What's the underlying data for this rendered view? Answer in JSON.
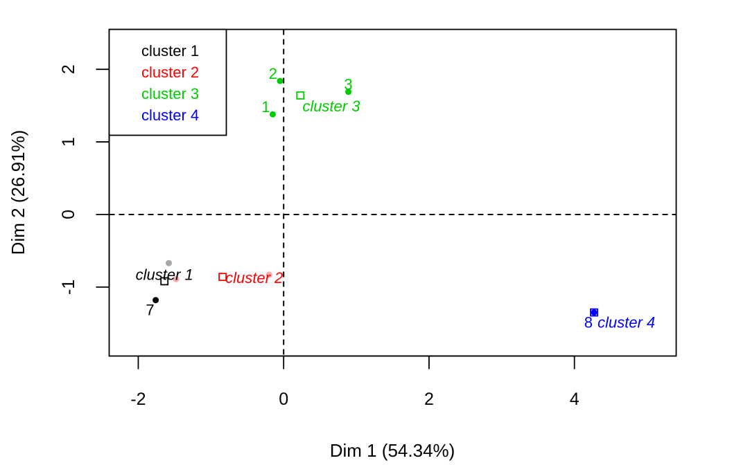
{
  "chart_data": {
    "type": "scatter",
    "title": "",
    "xlabel": "Dim 1 (54.34%)",
    "ylabel": "Dim 2 (26.91%)",
    "xlim": [
      -2.4,
      5.4
    ],
    "ylim": [
      -1.95,
      2.55
    ],
    "x_ticks": [
      -2,
      0,
      2,
      4
    ],
    "x_tick_labels": [
      "-2",
      "0",
      "2",
      "4"
    ],
    "y_ticks": [
      -1,
      0,
      1,
      2
    ],
    "y_tick_labels": [
      "-1",
      "0",
      "1",
      "2"
    ],
    "grid": false,
    "reference_lines": {
      "x": 0,
      "y": 0,
      "style": "dashed"
    },
    "legend": {
      "placement": "top-left",
      "entries": [
        {
          "label": "cluster 1",
          "color": "#000000"
        },
        {
          "label": "cluster 2",
          "color": "#FF0000"
        },
        {
          "label": "cluster 3",
          "color": "#00CD00"
        },
        {
          "label": "cluster 4",
          "color": "#0000FF"
        }
      ]
    },
    "series": [
      {
        "color": "#000000",
        "points": [
          {
            "x": -1.58,
            "y": -0.67,
            "label": "",
            "faded": true
          },
          {
            "x": -1.76,
            "y": -1.18,
            "label": "7",
            "faded": false
          }
        ],
        "center": {
          "x": -1.64,
          "y": -0.92,
          "label": "cluster 1"
        }
      },
      {
        "color": "#FF0000",
        "points": [
          {
            "x": -1.48,
            "y": -0.89,
            "label": "",
            "faded": true
          },
          {
            "x": -0.2,
            "y": -0.83,
            "label": "",
            "faded": true
          }
        ],
        "center": {
          "x": -0.84,
          "y": -0.86,
          "label": "cluster 2"
        }
      },
      {
        "color": "#00CD00",
        "points": [
          {
            "x": -0.15,
            "y": 1.38,
            "label": "1",
            "faded": false
          },
          {
            "x": -0.05,
            "y": 1.84,
            "label": "2",
            "faded": false
          },
          {
            "x": 0.89,
            "y": 1.69,
            "label": "3",
            "faded": false
          }
        ],
        "center": {
          "x": 0.23,
          "y": 1.64,
          "label": "cluster 3"
        }
      },
      {
        "color": "#0000FF",
        "points": [
          {
            "x": 4.27,
            "y": -1.35,
            "label": "8",
            "faded": false
          }
        ],
        "center": {
          "x": 4.27,
          "y": -1.35,
          "label": "cluster 4"
        }
      }
    ]
  }
}
